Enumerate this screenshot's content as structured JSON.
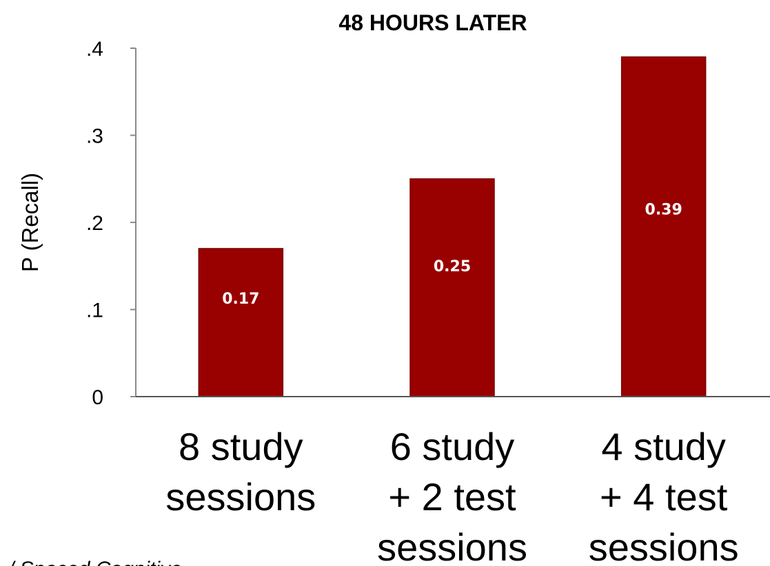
{
  "chart_data": {
    "type": "bar",
    "title": "48 HOURS LATER",
    "ylabel": "P (Recall)",
    "xlabel": "",
    "ylim": [
      0,
      0.4
    ],
    "yticks": [
      {
        "value": 0,
        "label": "0"
      },
      {
        "value": 0.1,
        "label": ".1"
      },
      {
        "value": 0.2,
        "label": ".2"
      },
      {
        "value": 0.3,
        "label": ".3"
      },
      {
        "value": 0.4,
        "label": ".4"
      }
    ],
    "categories": [
      [
        "8 study",
        "sessions"
      ],
      [
        "6 study",
        "+ 2 test",
        "sessions"
      ],
      [
        "4 study",
        "+ 4 test",
        "sessions"
      ]
    ],
    "values": [
      0.17,
      0.25,
      0.39
    ],
    "data_labels": [
      "0.17",
      "0.25",
      "0.39"
    ],
    "bar_color": "#990000",
    "grid": false
  },
  "footnote": "/ Spaced Cognitive"
}
